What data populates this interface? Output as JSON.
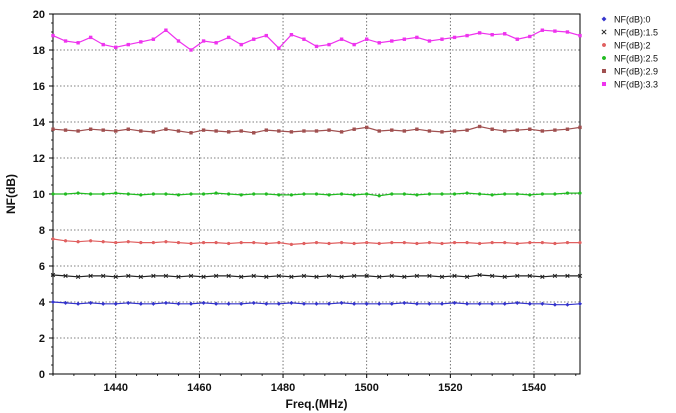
{
  "chart_data": {
    "type": "line",
    "xlabel": "Freq.(MHz)",
    "ylabel": "NF(dB)",
    "xlim": [
      1425,
      1551
    ],
    "ylim": [
      0,
      20
    ],
    "x_ticks": [
      1440,
      1460,
      1480,
      1500,
      1520,
      1540
    ],
    "y_ticks": [
      0,
      2,
      4,
      6,
      8,
      10,
      12,
      14,
      16,
      18,
      20
    ],
    "grid": true,
    "legend_position": "top-right",
    "x": [
      1425,
      1428,
      1431,
      1434,
      1437,
      1440,
      1443,
      1446,
      1449,
      1452,
      1455,
      1458,
      1461,
      1464,
      1467,
      1470,
      1473,
      1476,
      1479,
      1482,
      1485,
      1488,
      1491,
      1494,
      1497,
      1500,
      1503,
      1506,
      1509,
      1512,
      1515,
      1518,
      1521,
      1524,
      1527,
      1530,
      1533,
      1536,
      1539,
      1542,
      1545,
      1548,
      1551
    ],
    "series": [
      {
        "name": "NF(dB):0",
        "color": "#3333cc",
        "marker": "diamond",
        "values": [
          4.0,
          3.95,
          3.9,
          3.95,
          3.9,
          3.9,
          3.95,
          3.9,
          3.9,
          3.95,
          3.9,
          3.9,
          3.95,
          3.9,
          3.9,
          3.9,
          3.95,
          3.9,
          3.9,
          3.95,
          3.9,
          3.9,
          3.9,
          3.95,
          3.9,
          3.9,
          3.9,
          3.9,
          3.95,
          3.9,
          3.9,
          3.9,
          3.95,
          3.9,
          3.9,
          3.9,
          3.9,
          3.95,
          3.9,
          3.9,
          3.85,
          3.85,
          3.9
        ]
      },
      {
        "name": "NF(dB):1.5",
        "color": "#222222",
        "marker": "x",
        "values": [
          5.5,
          5.45,
          5.4,
          5.45,
          5.45,
          5.4,
          5.45,
          5.4,
          5.45,
          5.45,
          5.4,
          5.45,
          5.4,
          5.45,
          5.45,
          5.4,
          5.45,
          5.4,
          5.45,
          5.4,
          5.45,
          5.4,
          5.45,
          5.4,
          5.45,
          5.45,
          5.4,
          5.45,
          5.4,
          5.45,
          5.45,
          5.4,
          5.45,
          5.4,
          5.5,
          5.45,
          5.4,
          5.45,
          5.45,
          5.4,
          5.45,
          5.45,
          5.45
        ]
      },
      {
        "name": "NF(dB):2",
        "color": "#e06060",
        "marker": "circle",
        "values": [
          7.5,
          7.4,
          7.35,
          7.4,
          7.35,
          7.3,
          7.35,
          7.3,
          7.3,
          7.35,
          7.3,
          7.25,
          7.3,
          7.3,
          7.25,
          7.3,
          7.3,
          7.25,
          7.3,
          7.2,
          7.25,
          7.3,
          7.25,
          7.3,
          7.25,
          7.3,
          7.25,
          7.3,
          7.3,
          7.25,
          7.3,
          7.25,
          7.3,
          7.3,
          7.25,
          7.3,
          7.3,
          7.25,
          7.3,
          7.3,
          7.25,
          7.3,
          7.3
        ]
      },
      {
        "name": "NF(dB):2.5",
        "color": "#22bb22",
        "marker": "circle",
        "values": [
          10.0,
          10.0,
          10.05,
          10.0,
          10.0,
          10.05,
          10.0,
          9.95,
          10.0,
          10.0,
          9.95,
          10.0,
          10.0,
          10.05,
          10.0,
          9.95,
          10.0,
          10.0,
          9.95,
          9.95,
          10.0,
          10.0,
          9.95,
          10.0,
          9.95,
          10.0,
          9.9,
          10.0,
          10.0,
          9.95,
          10.0,
          10.0,
          10.0,
          10.05,
          10.0,
          9.95,
          10.0,
          10.0,
          9.95,
          10.0,
          10.0,
          10.05,
          10.05
        ]
      },
      {
        "name": "NF(dB):2.9",
        "color": "#a05050",
        "marker": "square",
        "values": [
          13.6,
          13.55,
          13.5,
          13.6,
          13.55,
          13.5,
          13.6,
          13.5,
          13.45,
          13.6,
          13.5,
          13.4,
          13.55,
          13.5,
          13.45,
          13.5,
          13.4,
          13.55,
          13.5,
          13.45,
          13.5,
          13.5,
          13.55,
          13.45,
          13.6,
          13.7,
          13.5,
          13.55,
          13.5,
          13.6,
          13.5,
          13.45,
          13.5,
          13.55,
          13.75,
          13.6,
          13.5,
          13.55,
          13.6,
          13.5,
          13.55,
          13.6,
          13.7
        ]
      },
      {
        "name": "NF(dB):3.3",
        "color": "#ee33ee",
        "marker": "square",
        "values": [
          18.8,
          18.5,
          18.4,
          18.7,
          18.3,
          18.15,
          18.3,
          18.45,
          18.6,
          19.1,
          18.5,
          18.0,
          18.5,
          18.4,
          18.7,
          18.3,
          18.6,
          18.8,
          18.1,
          18.85,
          18.6,
          18.2,
          18.3,
          18.6,
          18.3,
          18.6,
          18.4,
          18.5,
          18.6,
          18.7,
          18.5,
          18.6,
          18.7,
          18.8,
          18.95,
          18.85,
          18.9,
          18.6,
          18.75,
          19.1,
          19.05,
          19.0,
          18.8
        ]
      }
    ]
  }
}
